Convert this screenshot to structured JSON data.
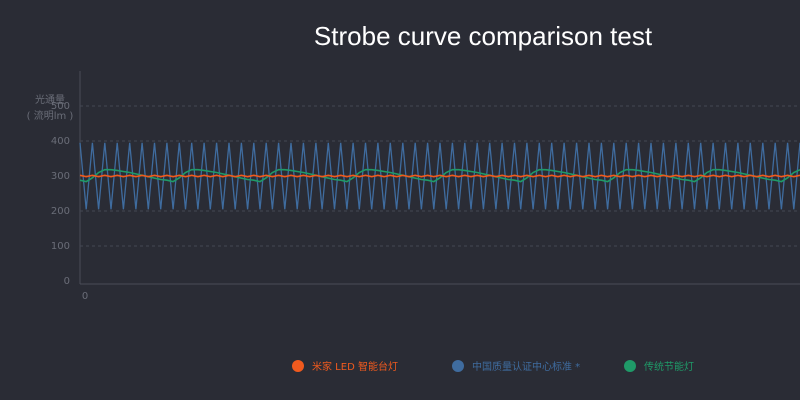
{
  "chart_data": {
    "type": "line",
    "title": "Strobe curve comparison test",
    "y_label": [
      "光通量",
      "( 流明lm )"
    ],
    "x": [
      0,
      1,
      2,
      3,
      4,
      5,
      6,
      7,
      8,
      9,
      10,
      11,
      12,
      13,
      14,
      15,
      16,
      17,
      18,
      19,
      20,
      21,
      22,
      23,
      24,
      25,
      26,
      27,
      28,
      29,
      30,
      31,
      32,
      33,
      34,
      35,
      36,
      37,
      38,
      39,
      40,
      41,
      42,
      43,
      44,
      45,
      46,
      47,
      48,
      49,
      50,
      51,
      52,
      53,
      54,
      55,
      56,
      57,
      58,
      59,
      60,
      61,
      62,
      63,
      64,
      65,
      66,
      67,
      68,
      69,
      70,
      71,
      72,
      73,
      74,
      75,
      76,
      77,
      78,
      79,
      80,
      81,
      82,
      83,
      84,
      85,
      86,
      87,
      88,
      89,
      90,
      91,
      92,
      93,
      94,
      95,
      96,
      97,
      98,
      99,
      100,
      101,
      102,
      103,
      104,
      105,
      106,
      107,
      108,
      109,
      110,
      111,
      112,
      113,
      114,
      115,
      116
    ],
    "xlim": [
      0,
      116
    ],
    "xticks": [
      0
    ],
    "ylim": [
      0,
      600
    ],
    "yticks": [
      0,
      100,
      200,
      300,
      400,
      500
    ],
    "grid": true,
    "series": [
      {
        "name": "米家 LED 智能台灯",
        "color": "#f05a1e",
        "values": [
          302,
          298,
          302,
          298,
          302,
          298,
          302,
          298,
          302,
          298,
          302,
          298,
          302,
          298,
          302,
          298,
          302,
          298,
          302,
          298,
          302,
          298,
          302,
          298,
          302,
          298,
          302,
          298,
          302,
          298,
          302,
          298,
          302,
          298,
          302,
          298,
          302,
          298,
          302,
          298,
          302,
          298,
          302,
          298,
          302,
          298,
          302,
          298,
          302,
          298,
          302,
          298,
          302,
          298,
          302,
          298,
          302,
          298,
          302,
          298,
          302,
          298,
          302,
          298,
          302,
          298,
          302,
          298,
          302,
          298,
          302,
          298,
          302,
          298,
          302,
          298,
          302,
          298,
          302,
          298,
          302,
          298,
          302,
          298,
          302,
          298,
          302,
          298,
          302,
          298,
          302,
          298,
          302,
          298,
          302,
          298,
          302,
          298,
          302,
          298,
          302,
          298,
          302,
          298,
          302,
          298,
          302,
          298,
          302,
          298,
          302,
          298,
          302,
          298,
          302,
          298,
          302
        ]
      },
      {
        "name": "中国质量认证中心标准 *",
        "color": "#3f6c9f",
        "values": [
          395,
          205,
          395,
          205,
          395,
          205,
          395,
          205,
          395,
          205,
          395,
          205,
          395,
          205,
          395,
          205,
          395,
          205,
          395,
          205,
          395,
          205,
          395,
          205,
          395,
          205,
          395,
          205,
          395,
          205,
          395,
          205,
          395,
          205,
          395,
          205,
          395,
          205,
          395,
          205,
          395,
          205,
          395,
          205,
          395,
          205,
          395,
          205,
          395,
          205,
          395,
          205,
          395,
          205,
          395,
          205,
          395,
          205,
          395,
          205,
          395,
          205,
          395,
          205,
          395,
          205,
          395,
          205,
          395,
          205,
          395,
          205,
          395,
          205,
          395,
          205,
          395,
          205,
          395,
          205,
          395,
          205,
          395,
          205,
          395,
          205,
          395,
          205,
          395,
          205,
          395,
          205,
          395,
          205,
          395,
          205,
          395,
          205,
          395,
          205,
          395,
          205,
          395,
          205,
          395,
          205,
          395,
          205,
          395,
          205,
          395,
          205,
          395,
          205,
          395,
          205,
          395
        ]
      },
      {
        "name": "传统节能灯",
        "color": "#1f9a68",
        "values": [
          288,
          284,
          295,
          310,
          318,
          318,
          316,
          313,
          310,
          306,
          302,
          298,
          294,
          290,
          288,
          284,
          295,
          310,
          318,
          318,
          316,
          313,
          310,
          306,
          302,
          298,
          294,
          290,
          288,
          284,
          295,
          310,
          318,
          318,
          316,
          313,
          310,
          306,
          302,
          298,
          294,
          290,
          288,
          284,
          295,
          310,
          318,
          318,
          316,
          313,
          310,
          306,
          302,
          298,
          294,
          290,
          288,
          284,
          295,
          310,
          318,
          318,
          316,
          313,
          310,
          306,
          302,
          298,
          294,
          290,
          288,
          284,
          295,
          310,
          318,
          318,
          316,
          313,
          310,
          306,
          302,
          298,
          294,
          290,
          288,
          284,
          295,
          310,
          318,
          318,
          316,
          313,
          310,
          306,
          302,
          298,
          294,
          290,
          288,
          284,
          295,
          310,
          318,
          318,
          316,
          313,
          310,
          306,
          302,
          298,
          294,
          290,
          288,
          284,
          295,
          310,
          318
        ]
      }
    ]
  }
}
